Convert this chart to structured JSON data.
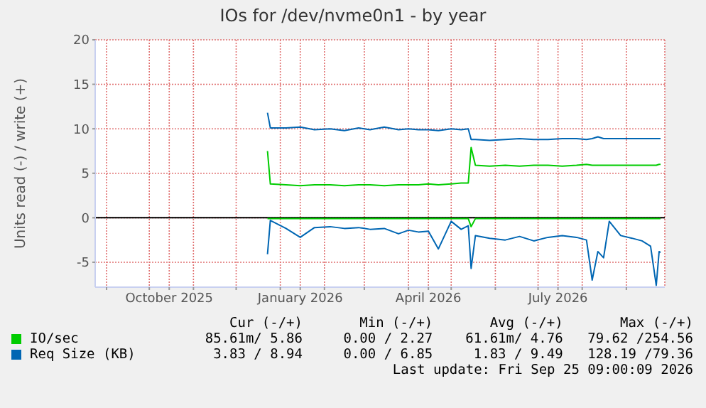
{
  "chart_data": {
    "type": "line",
    "title": "IOs for /dev/nvme0n1 - by year",
    "ylabel": "Units read (-) / write (+)",
    "x": [
      "2025-12-23",
      "2025-12-25",
      "2026-01-05",
      "2026-01-15",
      "2026-01-25",
      "2026-02-05",
      "2026-02-15",
      "2026-02-25",
      "2026-03-05",
      "2026-03-15",
      "2026-03-25",
      "2026-04-01",
      "2026-04-08",
      "2026-04-15",
      "2026-04-22",
      "2026-05-01",
      "2026-05-08",
      "2026-05-13",
      "2026-05-15",
      "2026-05-18",
      "2026-05-28",
      "2026-06-08",
      "2026-06-18",
      "2026-06-28",
      "2026-07-08",
      "2026-07-18",
      "2026-07-28",
      "2026-08-04",
      "2026-08-08",
      "2026-08-12",
      "2026-08-16",
      "2026-08-20",
      "2026-08-28",
      "2026-09-05",
      "2026-09-12",
      "2026-09-18",
      "2026-09-22",
      "2026-09-24",
      "2026-09-25"
    ],
    "xlim": [
      "2025-08-24",
      "2026-09-28"
    ],
    "xticks": [
      {
        "value": "2025-09-01",
        "label": null
      },
      {
        "value": "2025-10-01",
        "label": null
      },
      {
        "value": "2025-10-15",
        "label": "October 2025"
      },
      {
        "value": "2025-11-01",
        "label": null
      },
      {
        "value": "2025-12-01",
        "label": null
      },
      {
        "value": "2026-01-01",
        "label": null
      },
      {
        "value": "2026-01-15",
        "label": "January 2026"
      },
      {
        "value": "2026-02-01",
        "label": null
      },
      {
        "value": "2026-03-01",
        "label": null
      },
      {
        "value": "2026-04-01",
        "label": null
      },
      {
        "value": "2026-04-15",
        "label": "April 2026"
      },
      {
        "value": "2026-05-01",
        "label": null
      },
      {
        "value": "2026-06-01",
        "label": null
      },
      {
        "value": "2026-07-01",
        "label": null
      },
      {
        "value": "2026-07-15",
        "label": "July 2026"
      },
      {
        "value": "2026-08-01",
        "label": null
      },
      {
        "value": "2026-09-01",
        "label": null
      }
    ],
    "ylim": [
      -7.8,
      20
    ],
    "yticks": [
      -5,
      0,
      5,
      10,
      15,
      20
    ],
    "grid": true,
    "legend": "bottom",
    "marker": "none",
    "ref_lines": [
      {
        "axis": "y",
        "value": 0,
        "color": "#000000"
      }
    ],
    "series": [
      {
        "name": "IO/sec",
        "color": "#00cc00",
        "values": [
          7.5,
          3.8,
          3.7,
          3.6,
          3.7,
          3.7,
          3.6,
          3.7,
          3.7,
          3.6,
          3.7,
          3.7,
          3.7,
          3.8,
          3.7,
          3.8,
          3.9,
          3.9,
          7.9,
          5.9,
          5.8,
          5.9,
          5.8,
          5.9,
          5.9,
          5.8,
          5.9,
          6.0,
          5.9,
          5.9,
          5.9,
          5.9,
          5.9,
          5.9,
          5.9,
          5.9,
          5.9,
          6.0,
          6.0
        ]
      },
      {
        "color": "#00cc00",
        "values": [
          -0.1,
          -0.1,
          -0.1,
          -0.1,
          -0.1,
          -0.1,
          -0.1,
          -0.1,
          -0.1,
          -0.1,
          -0.1,
          -0.1,
          -0.1,
          -0.1,
          -0.1,
          -0.1,
          -0.1,
          -0.1,
          -1.0,
          -0.1,
          -0.1,
          -0.1,
          -0.1,
          -0.1,
          -0.1,
          -0.1,
          -0.1,
          -0.1,
          -0.1,
          -0.1,
          -0.1,
          -0.1,
          -0.1,
          -0.1,
          -0.1,
          -0.1,
          -0.1,
          -0.1,
          -0.1
        ]
      },
      {
        "name": "Req Size (KB)",
        "color": "#0066b3",
        "values": [
          11.8,
          10.1,
          10.1,
          10.2,
          9.9,
          10.0,
          9.8,
          10.1,
          9.9,
          10.2,
          9.9,
          10.0,
          9.9,
          9.9,
          9.8,
          10.0,
          9.9,
          10.0,
          8.8,
          8.8,
          8.7,
          8.8,
          8.9,
          8.8,
          8.8,
          8.9,
          8.9,
          8.8,
          8.9,
          9.1,
          8.9,
          8.9,
          8.9,
          8.9,
          8.9,
          8.9,
          8.9,
          8.9,
          8.9
        ]
      },
      {
        "color": "#0066b3",
        "values": [
          -4.1,
          -0.3,
          -1.2,
          -2.2,
          -1.1,
          -1.0,
          -1.2,
          -1.1,
          -1.3,
          -1.2,
          -1.8,
          -1.4,
          -1.6,
          -1.5,
          -3.5,
          -0.4,
          -1.3,
          -0.9,
          -5.7,
          -2.0,
          -2.3,
          -2.5,
          -2.1,
          -2.6,
          -2.2,
          -2.0,
          -2.2,
          -2.5,
          -7.0,
          -3.8,
          -4.5,
          -0.4,
          -2.0,
          -2.3,
          -2.6,
          -3.2,
          -7.6,
          -3.8,
          -3.9
        ]
      }
    ],
    "annotations": [
      "Cur (-/+)",
      "Min (-/+)",
      "Avg (-/+)",
      "Max (-/+)",
      "85.61m/ 5.86",
      "0.00 / 2.27",
      "61.61m/ 4.76",
      "79.62 /254.56",
      "3.83 / 8.94",
      "0.00 / 6.85",
      "1.83 / 9.49",
      "128.19 /79.36",
      "Last update: Fri Sep 25 09:00:09 2026"
    ]
  }
}
